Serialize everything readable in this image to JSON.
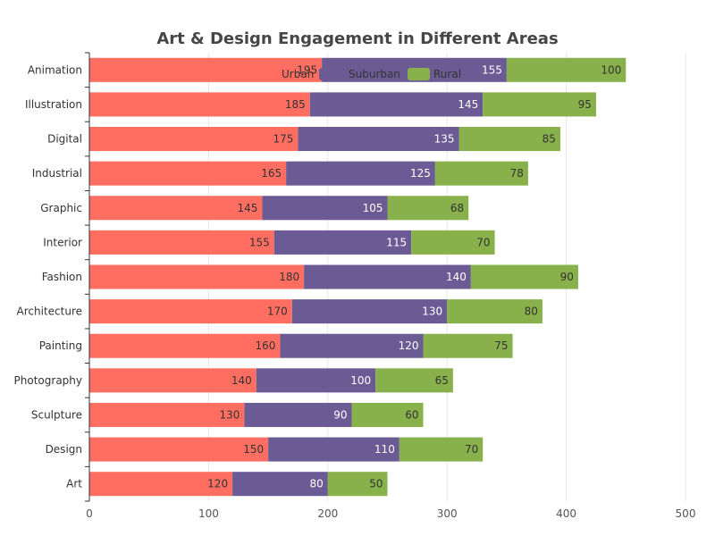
{
  "chart_data": {
    "type": "bar",
    "orientation": "horizontal",
    "stacked": true,
    "title": "Art & Design Engagement in Different Areas",
    "xlabel": "",
    "ylabel": "",
    "categories": [
      "Animation",
      "Illustration",
      "Digital",
      "Industrial",
      "Graphic",
      "Interior",
      "Fashion",
      "Architecture",
      "Painting",
      "Photography",
      "Sculpture",
      "Design",
      "Art"
    ],
    "series": [
      {
        "name": "Urban",
        "color": "#ff6e61",
        "label_color": "#333333",
        "values": [
          195,
          185,
          175,
          165,
          145,
          155,
          180,
          170,
          160,
          140,
          130,
          150,
          120
        ]
      },
      {
        "name": "Suburban",
        "color": "#6b5b95",
        "label_color": "#ffffff",
        "values": [
          155,
          145,
          135,
          125,
          105,
          115,
          140,
          130,
          120,
          100,
          90,
          110,
          80
        ]
      },
      {
        "name": "Rural",
        "color": "#88b04b",
        "label_color": "#333333",
        "values": [
          100,
          95,
          85,
          78,
          68,
          70,
          90,
          80,
          75,
          65,
          60,
          70,
          50
        ]
      }
    ],
    "xlim": [
      0,
      500
    ],
    "x_ticks": [
      "0",
      "100",
      "200",
      "300",
      "400",
      "500"
    ],
    "grid": "vertical",
    "legend_position": "top-center"
  }
}
